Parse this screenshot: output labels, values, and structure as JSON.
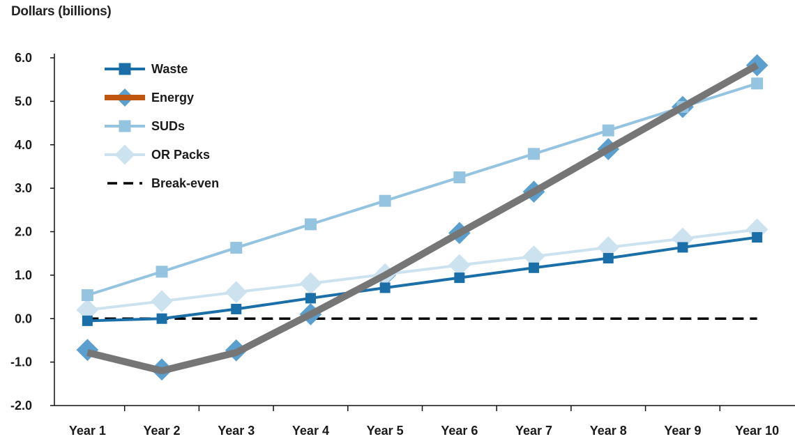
{
  "chart_data": {
    "type": "line",
    "title": "",
    "ylabel": "Dollars (billions)",
    "xlabel": "",
    "categories": [
      "Year 1",
      "Year 2",
      "Year 3",
      "Year 4",
      "Year 5",
      "Year 6",
      "Year 7",
      "Year 8",
      "Year 9",
      "Year 10"
    ],
    "ylim": [
      -2.0,
      6.0
    ],
    "yticks": [
      "-2.0",
      "-1.0",
      "0.0",
      "1.0",
      "2.0",
      "3.0",
      "4.0",
      "5.0",
      "6.0"
    ],
    "grid": false,
    "legend_position": "top-left",
    "series": [
      {
        "name": "Waste",
        "color": "#1a6fa8",
        "marker": "square",
        "values": [
          -0.05,
          0.0,
          0.22,
          0.47,
          0.71,
          0.94,
          1.17,
          1.39,
          1.64,
          1.87
        ]
      },
      {
        "name": "Energy",
        "color": "#c0550f",
        "marker": "diamond",
        "values": [
          -0.72,
          -1.17,
          -0.73,
          0.1,
          1.0,
          1.97,
          2.92,
          3.9,
          4.87,
          5.83
        ]
      },
      {
        "name": "SUDs",
        "color": "#95c4e0",
        "marker": "square",
        "values": [
          0.54,
          1.08,
          1.63,
          2.17,
          2.71,
          3.25,
          3.79,
          4.33,
          4.87,
          5.41
        ]
      },
      {
        "name": "OR Packs",
        "color": "#cde2ef",
        "marker": "diamond",
        "values": [
          0.2,
          0.4,
          0.61,
          0.81,
          1.02,
          1.23,
          1.43,
          1.64,
          1.84,
          2.05
        ]
      },
      {
        "name": "Break-even",
        "color": "#000000",
        "marker": "none",
        "dashed": true,
        "values": [
          0,
          0,
          0,
          0,
          0,
          0,
          0,
          0,
          0,
          0
        ]
      }
    ],
    "overlay_line": {
      "color": "#767676",
      "values": [
        -0.78,
        -1.2,
        -0.78,
        0.1,
        1.0,
        1.97,
        2.92,
        3.9,
        4.87,
        5.83
      ]
    },
    "marker_color_diamonds": "#5a9fce"
  }
}
